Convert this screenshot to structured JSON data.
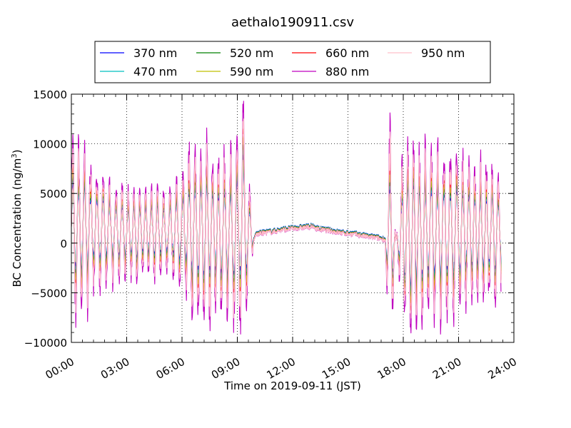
{
  "chart_data": {
    "type": "line",
    "title": "aethalo190911.csv",
    "xlabel": "Time on 2019-09-11 (JST)",
    "ylabel_main": "BC Concentration (ng/m",
    "ylabel_sup": "3",
    "ylabel_close": ")",
    "xlim": [
      0,
      24
    ],
    "ylim": [
      -10000,
      15000
    ],
    "grid": true,
    "legend_placement": "top-center",
    "x_ticks": [
      0,
      3,
      6,
      9,
      12,
      15,
      18,
      21,
      24
    ],
    "x_tick_labels": [
      "00:00",
      "03:00",
      "06:00",
      "09:00",
      "12:00",
      "15:00",
      "18:00",
      "21:00",
      "24:00"
    ],
    "y_ticks": [
      -10000,
      -5000,
      0,
      5000,
      10000,
      15000
    ],
    "y_tick_labels": [
      "−10000",
      "−5000",
      "0",
      "5000",
      "10000",
      "15000"
    ],
    "series": [
      {
        "name": "370 nm",
        "color": "#0000ff",
        "scale": 0.55,
        "offset": 120
      },
      {
        "name": "470 nm",
        "color": "#00bfbf",
        "scale": 0.6,
        "offset": 80
      },
      {
        "name": "520 nm",
        "color": "#008000",
        "scale": 0.65,
        "offset": 40
      },
      {
        "name": "590 nm",
        "color": "#bfbf00",
        "scale": 0.7,
        "offset": 0
      },
      {
        "name": "660 nm",
        "color": "#ff0000",
        "scale": 0.8,
        "offset": -40
      },
      {
        "name": "880 nm",
        "color": "#bf00bf",
        "scale": 1.0,
        "offset": -80
      },
      {
        "name": "950 nm",
        "color": "#ffc0cb",
        "scale": 0.85,
        "offset": -60
      }
    ],
    "envelope": {
      "x": [
        0.0,
        0.5,
        1.0,
        1.5,
        2.0,
        2.5,
        3.0,
        3.5,
        4.0,
        4.5,
        5.0,
        5.5,
        6.0,
        6.5,
        7.0,
        7.5,
        8.0,
        8.5,
        9.0,
        9.3,
        9.6,
        9.9,
        10.0,
        10.5,
        11.0,
        11.5,
        12.0,
        12.5,
        13.0,
        13.5,
        14.0,
        14.5,
        15.0,
        15.5,
        16.0,
        16.5,
        17.0,
        17.3,
        17.6,
        18.0,
        18.5,
        19.0,
        19.5,
        20.0,
        20.5,
        21.0,
        21.5,
        22.0,
        22.5,
        23.0,
        23.3
      ],
      "mean": [
        1500,
        1400,
        1300,
        1200,
        1100,
        1100,
        1000,
        1000,
        1100,
        1000,
        1000,
        1100,
        1200,
        1300,
        1200,
        1100,
        1000,
        900,
        800,
        2500,
        800,
        300,
        900,
        1100,
        1200,
        1400,
        1500,
        1600,
        1700,
        1400,
        1300,
        1100,
        1000,
        900,
        700,
        600,
        400,
        300,
        300,
        600,
        900,
        1000,
        1100,
        1000,
        900,
        1000,
        1100,
        1000,
        900,
        1000,
        800
      ],
      "amplitude": [
        8500,
        8000,
        7000,
        5500,
        5000,
        4500,
        4000,
        4200,
        4000,
        4500,
        4000,
        4200,
        6000,
        8000,
        9000,
        8500,
        8000,
        8000,
        9500,
        11000,
        6000,
        0,
        0,
        0,
        0,
        0,
        0,
        0,
        0,
        0,
        0,
        0,
        0,
        0,
        0,
        0,
        0,
        12000,
        0,
        9000,
        9000,
        8500,
        8000,
        8500,
        8000,
        8000,
        7000,
        7000,
        7000,
        6500,
        5000
      ],
      "period_hours": 0.33
    }
  }
}
